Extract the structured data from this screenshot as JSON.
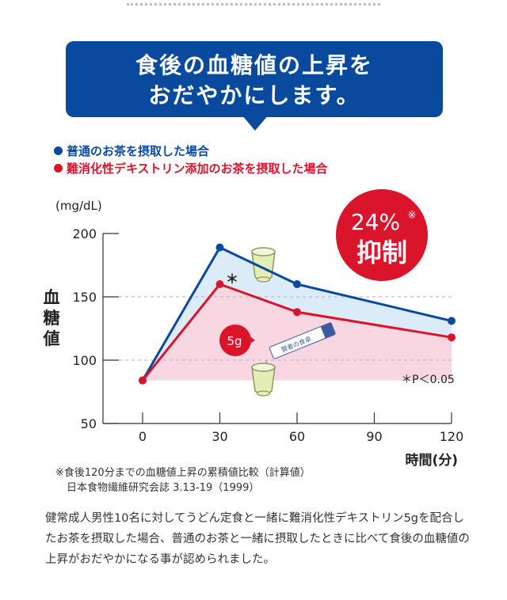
{
  "banner": {
    "line1": "食後の血糖値の上昇を",
    "line2": "おだやかにします。"
  },
  "legend": [
    {
      "label": "●普通のお茶を摂取した場合",
      "text": "普通のお茶を摂取した場合",
      "color": "#0a4a9e"
    },
    {
      "label": "●難消化性デキストリン添加のお茶を摂取した場合",
      "text": "難消化性デキストリン添加のお茶を摂取した場合",
      "color": "#d9142b"
    }
  ],
  "badge": {
    "percent": "24%",
    "mark": "※",
    "label": "抑制",
    "color": "#d9142b"
  },
  "annotations": {
    "star": "＊",
    "pvalue": "＊P＜0.05",
    "dose": "5g",
    "stick_label": "賢者の食卓"
  },
  "chart_data": {
    "type": "line",
    "ylabel": "血糖値",
    "yunit": "(mg/dL)",
    "xlabel": "時間(分)",
    "ylim": [
      50,
      200
    ],
    "yticks": [
      50,
      100,
      150,
      200
    ],
    "xticks": [
      0,
      30,
      60,
      90,
      120
    ],
    "grid": "dashed at 100 and 150",
    "series": [
      {
        "name": "普通のお茶を摂取した場合",
        "color": "#0a4a9e",
        "x": [
          0,
          30,
          60,
          120
        ],
        "y": [
          84,
          189,
          160,
          131
        ]
      },
      {
        "name": "難消化性デキストリン添加のお茶を摂取した場合",
        "color": "#d9142b",
        "x": [
          0,
          30,
          60,
          120
        ],
        "y": [
          84,
          160,
          138,
          118
        ]
      }
    ]
  },
  "footnote": {
    "line1": "※食後120分までの血糖値上昇の累積値比較（計算値）",
    "line2": "日本食物繊維研究会誌 3.13-19（1999）"
  },
  "description": "健常成人男性10名に対してうどん定食と一緒に難消化性デキストリン5gを配合したお茶を摂取した場合、普通のお茶と一緒に摂取したときに比べて食後の血糖値の上昇がおだやかになる事が認められました。"
}
